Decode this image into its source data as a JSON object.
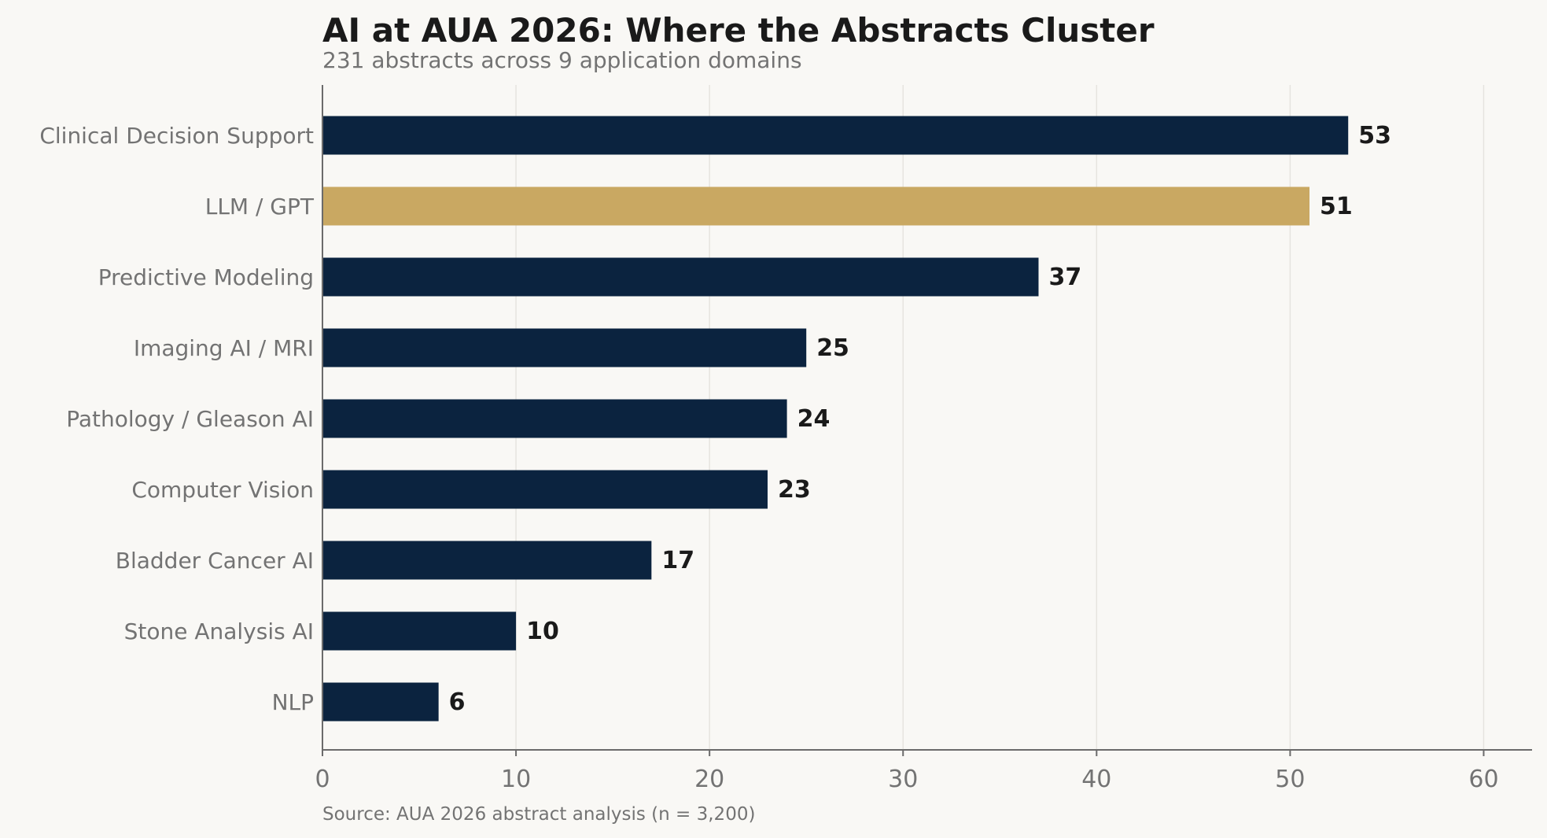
{
  "chart_data": {
    "type": "bar",
    "orientation": "horizontal",
    "title": "AI at AUA 2026: Where the Abstracts Cluster",
    "subtitle": "231 abstracts across 9 application domains",
    "source": "Source: AUA 2026 abstract analysis (n = 3,200)",
    "categories": [
      "Clinical Decision Support",
      "LLM / GPT",
      "Predictive Modeling",
      "Imaging AI / MRI",
      "Pathology / Gleason AI",
      "Computer Vision",
      "Bladder Cancer AI",
      "Stone Analysis AI",
      "NLP"
    ],
    "values": [
      53,
      51,
      37,
      25,
      24,
      23,
      17,
      10,
      6
    ],
    "highlight_category": "LLM / GPT",
    "xlim": [
      0,
      62.5
    ],
    "xticks": [
      0,
      10,
      20,
      30,
      40,
      50,
      60
    ],
    "grid": "vertical",
    "xlabel": "",
    "ylabel": "",
    "colors": {
      "bar": "#0b233f",
      "highlight": "#c9a862",
      "background": "#f9f8f5"
    }
  }
}
